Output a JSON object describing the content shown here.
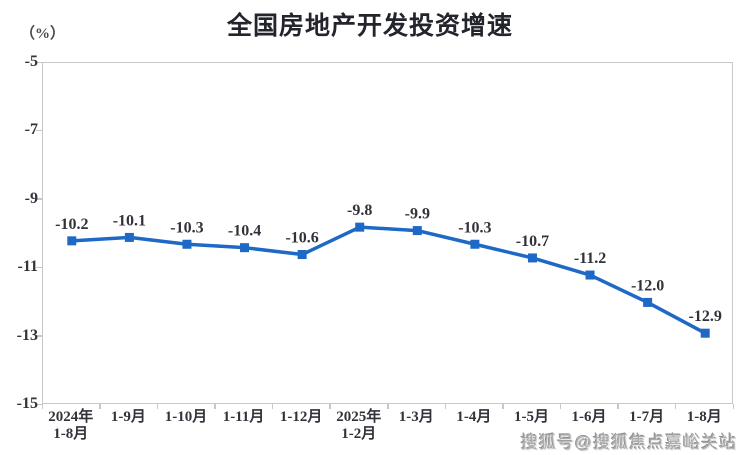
{
  "header": {
    "title": "全国房地产开发投资增速",
    "unit_label": "（%）"
  },
  "watermark": "搜狐号@搜狐焦点嘉峪关站",
  "chart_data": {
    "type": "line",
    "title": "全国房地产开发投资增速",
    "ylabel": "（%）",
    "xlabel": "",
    "categories": [
      "2024年\n1-8月",
      "1-9月",
      "1-10月",
      "1-11月",
      "1-12月",
      "2025年\n1-2月",
      "1-3月",
      "1-4月",
      "1-5月",
      "1-6月",
      "1-7月",
      "1-8月"
    ],
    "values": [
      -10.2,
      -10.1,
      -10.3,
      -10.4,
      -10.6,
      -9.8,
      -9.9,
      -10.3,
      -10.7,
      -11.2,
      -12.0,
      -12.9
    ],
    "data_labels": [
      "-10.2",
      "-10.1",
      "-10.3",
      "-10.4",
      "-10.6",
      "-9.8",
      "-9.9",
      "-10.3",
      "-10.7",
      "-11.2",
      "-12.0",
      "-12.9"
    ],
    "ylim": [
      -15,
      -5
    ],
    "yticks": [
      -5,
      -7,
      -9,
      -11,
      -13,
      -15
    ],
    "grid": false,
    "legend": "none",
    "line_color": "#1E68C6",
    "marker": "square",
    "axis_color": "#C8C8C8",
    "text_color": "#32333A"
  }
}
